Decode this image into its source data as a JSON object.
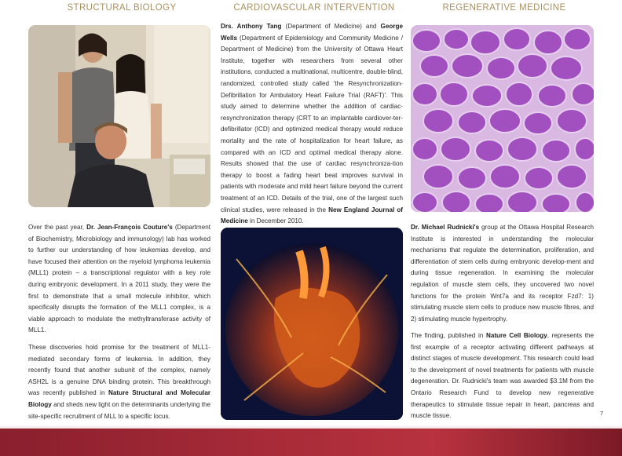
{
  "headers": [
    "STRUCTURAL BIOLOGY",
    "CARDIOVASCULAR INTERVENTION",
    "REGENERATIVE MEDICINE"
  ],
  "col1": {
    "p1": [
      {
        "t": "Over the past year, "
      },
      {
        "t": "Dr. Jean-François Couture's",
        "b": true
      },
      {
        "t": " (Department of Biochemistry, Microbiology and immunology) lab has worked to further our understanding of how leukemias develop, and have focused their attention on the myeloid lymphoma leukemia (MLL1) protein – a transcriptional regulator with a key role during embryonic development. In a 2011 study, they were the first to demonstrate that a small molecule inhibitor, which specifically disrupts the formation of the MLL1 complex, is a viable approach to modulate the methyltransferase activity of MLL1."
      }
    ],
    "p2": [
      {
        "t": "These discoveries hold promise for the treatment of MLL1-mediated secondary forms of leukemia. In addition, they recently found that another subunit of the complex, namely ASH2L is a genuine DNA binding protein. This breakthrough was recently published in "
      },
      {
        "t": "Nature Structural and Molecular Biology",
        "b": true
      },
      {
        "t": " and sheds new light on the determinants underlying the site-specific recruitment of MLL to a specific locus."
      }
    ]
  },
  "col2": {
    "p1": [
      {
        "t": "Drs. Anthony Tang",
        "b": true
      },
      {
        "t": " (Department of Medicine) and "
      },
      {
        "t": "George Wells",
        "b": true
      },
      {
        "t": " (Department of Epidemiology and Community Medicine / Department of Medicine) from the University of Ottawa Heart Institute, together with researchers from several other institutions, conducted a multinational, multicentre, double-blind, randomized, controlled study called 'the Resynchronization-Defibrillation for Ambulatory Heart Failure Trial (RAFT)'. This study aimed to determine whether the addition of cardiac-resynchronization therapy (CRT to an implantable cardiover-ter-defibrillator (ICD) and optimized medical therapy would reduce mortality and the rate of hospitalization for heart failure, as compared with an ICD and optimal medical therapy alone. Results showed that the use of cardiac resynchroniza-tion therapy to boost a fading heart beat improves survival in patients with moderate and mild heart failure beyond the current treatment of an ICD. Details of the trial, one of the largest such clinical studies, were released in the "
      },
      {
        "t": "New England Journal of Medicine",
        "b": true
      },
      {
        "t": " in December 2010."
      }
    ]
  },
  "col3": {
    "p1": [
      {
        "t": "Dr. Michael Rudnicki's",
        "b": true
      },
      {
        "t": " group at the Ottawa Hospital Research Institute is interested in understanding the molecular mechanisms that regulate the determination, proliferation, and differentiation of stem cells during embryonic develop-ment and during tissue regeneration. In examining the molecular regulation of muscle stem cells, they uncovered two novel functions for the protein Wnt7a and its receptor Fzd7: 1) stimulating muscle stem cells to produce new muscle fibres, and 2) stimulating muscle hypertrophy."
      }
    ],
    "p2": [
      {
        "t": "The finding, published in "
      },
      {
        "t": "Nature Cell Biology",
        "b": true
      },
      {
        "t": ", represents the first example of a receptor activating different pathways at distinct stages of muscle development. This research could lead to the development of novel treatments for patients with muscle degeneration. Dr. Rudnicki's team was awarded $3.1M from the Ontario Research Fund to develop new regenerative therapeutics to stimulate tissue repair in heart, pancreas and muscle tissue."
      }
    ]
  },
  "page_number": "7",
  "colors": {
    "heading": "#a9905f",
    "footer": "#a52a37"
  }
}
